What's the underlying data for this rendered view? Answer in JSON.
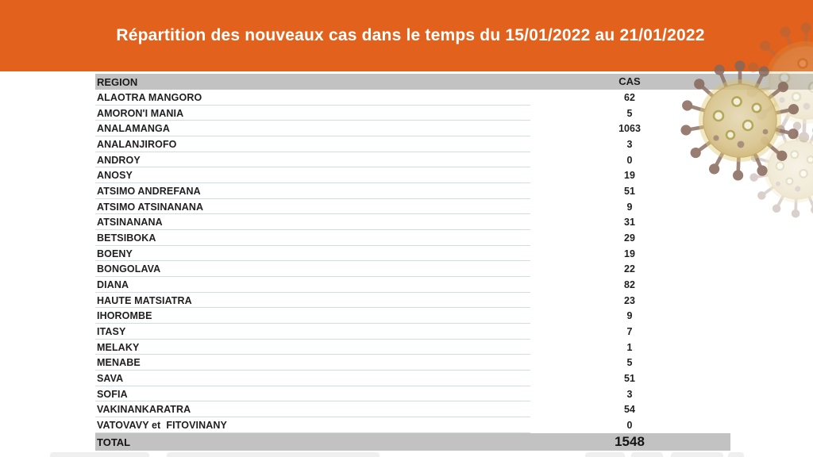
{
  "slide": {
    "title": "Répartition des nouveaux cas dans le temps du 15/01/2022 au 21/01/2022",
    "accent_color": "#e2621d",
    "band_color": "#c2c2c2",
    "decoration": "coronavirus-illustration"
  },
  "table": {
    "columns": [
      "REGION",
      "CAS"
    ],
    "rows": [
      {
        "region": "ALAOTRA MANGORO",
        "cas": "62"
      },
      {
        "region": "AMORON'I MANIA",
        "cas": "5"
      },
      {
        "region": "ANALAMANGA",
        "cas": "1063"
      },
      {
        "region": "ANALANJIROFO",
        "cas": "3"
      },
      {
        "region": "ANDROY",
        "cas": "0"
      },
      {
        "region": "ANOSY",
        "cas": "19"
      },
      {
        "region": "ATSIMO ANDREFANA",
        "cas": "51"
      },
      {
        "region": "ATSIMO ATSINANANA",
        "cas": "9"
      },
      {
        "region": "ATSINANANA",
        "cas": "31"
      },
      {
        "region": "BETSIBOKA",
        "cas": "29"
      },
      {
        "region": "BOENY",
        "cas": "19"
      },
      {
        "region": "BONGOLAVA",
        "cas": "22"
      },
      {
        "region": "DIANA",
        "cas": "82"
      },
      {
        "region": "HAUTE MATSIATRA",
        "cas": "23"
      },
      {
        "region": "IHOROMBE",
        "cas": "9"
      },
      {
        "region": "ITASY",
        "cas": "7"
      },
      {
        "region": "MELAKY",
        "cas": "1"
      },
      {
        "region": "MENABE",
        "cas": "5"
      },
      {
        "region": "SAVA",
        "cas": "51"
      },
      {
        "region": "SOFIA",
        "cas": "3"
      },
      {
        "region": "VAKINANKARATRA",
        "cas": "54"
      },
      {
        "region": "VATOVAVY et  FITOVINANY",
        "cas": "0"
      }
    ],
    "total_label": "TOTAL",
    "total_value": "1548"
  }
}
